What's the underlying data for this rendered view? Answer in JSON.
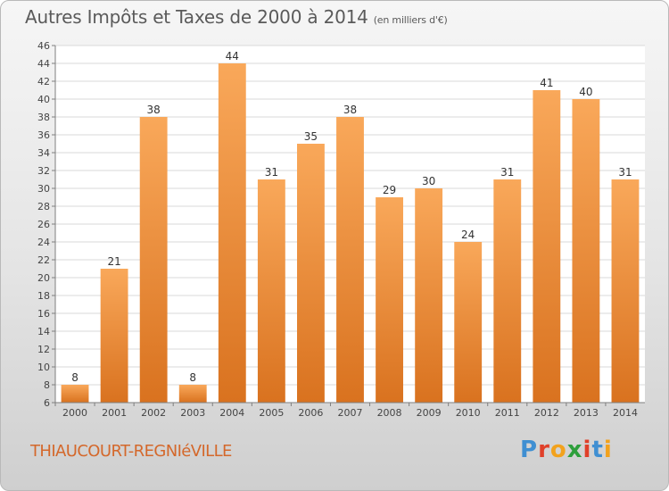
{
  "header": {
    "title": "Autres Impôts et Taxes de 2000 à 2014",
    "subtitle": "(en milliers d'€)"
  },
  "footer": {
    "commune": "THIAUCOURT-REGNIéVILLE",
    "logo_text": [
      "P",
      "r",
      "o",
      "x",
      "i",
      "t",
      "i"
    ]
  },
  "chart_data": {
    "type": "bar",
    "title": "Autres Impôts et Taxes de 2000 à 2014",
    "subtitle": "(en milliers d'€)",
    "xlabel": "",
    "ylabel": "",
    "categories": [
      "2000",
      "2001",
      "2002",
      "2003",
      "2004",
      "2005",
      "2006",
      "2007",
      "2008",
      "2009",
      "2010",
      "2011",
      "2012",
      "2013",
      "2014"
    ],
    "values": [
      8,
      21,
      38,
      8,
      44,
      31,
      35,
      38,
      29,
      30,
      24,
      31,
      41,
      40,
      31
    ],
    "ylim": [
      6,
      46
    ],
    "yticks": [
      6,
      8,
      10,
      12,
      14,
      16,
      18,
      20,
      22,
      24,
      26,
      28,
      30,
      32,
      34,
      36,
      38,
      40,
      42,
      44,
      46
    ],
    "grid": true,
    "legend": "none",
    "colors": {
      "bar_top": "#f9a85a",
      "bar_bottom": "#d9721f",
      "grid": "#d8d8d8",
      "axis": "#7f7f7f"
    }
  }
}
